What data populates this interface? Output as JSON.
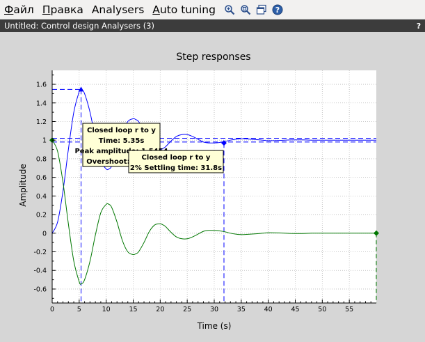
{
  "menu": [
    {
      "u": "Ф",
      "rest": "айл"
    },
    {
      "u": "П",
      "rest": "равка"
    },
    {
      "u": "",
      "rest": "Analysers"
    },
    {
      "u": "A",
      "rest": "uto tuning"
    }
  ],
  "toolbar_icons": [
    "zoom-in-icon",
    "zoom-fit-icon",
    "window-icon",
    "help-icon"
  ],
  "window": {
    "title": "Untitled: Control design Analysers (3)",
    "help": "?"
  },
  "chart_data": {
    "type": "line",
    "title": "Step responses",
    "xlabel": "Time (s)",
    "ylabel": "Amplitude",
    "xlim": [
      0,
      60
    ],
    "ylim": [
      -0.75,
      1.75
    ],
    "xticks": [
      0,
      5,
      10,
      15,
      20,
      25,
      30,
      35,
      40,
      45,
      50,
      55
    ],
    "yticks": [
      -0.6,
      -0.4,
      -0.2,
      0,
      0.2,
      0.4,
      0.6,
      0.8,
      1,
      1.2,
      1.4,
      1.6
    ],
    "ytick_labels": [
      "-0.6",
      "-0.4",
      "-0.2",
      "0",
      "0.2",
      "0.4",
      "0.6",
      "0.8",
      "1",
      "1.2",
      "1.4",
      "1.6"
    ],
    "grid": true,
    "series": [
      {
        "color": "#0000ff",
        "x": [
          0,
          1,
          2,
          3,
          4,
          5,
          5.35,
          6,
          7,
          8,
          9,
          10,
          10.5,
          11,
          12,
          13,
          14,
          15,
          15.5,
          16,
          17,
          18,
          19,
          20,
          20.5,
          21,
          22,
          23,
          24,
          25,
          26,
          27,
          28,
          29,
          30,
          31,
          32,
          33,
          34,
          35,
          36,
          38,
          40,
          42,
          44,
          46,
          48,
          50,
          52,
          54,
          56,
          58,
          60
        ],
        "y": [
          0,
          0.12,
          0.45,
          0.9,
          1.3,
          1.52,
          1.545,
          1.5,
          1.3,
          1.02,
          0.78,
          0.69,
          0.69,
          0.72,
          0.88,
          1.08,
          1.2,
          1.23,
          1.22,
          1.2,
          1.1,
          0.98,
          0.91,
          0.9,
          0.91,
          0.93,
          0.99,
          1.04,
          1.06,
          1.06,
          1.04,
          1.01,
          0.98,
          0.97,
          0.97,
          0.975,
          0.985,
          1.0,
          1.01,
          1.015,
          1.013,
          1.005,
          0.995,
          0.997,
          1.002,
          1.003,
          1.0,
          0.999,
          1.0,
          1.0,
          1.0,
          1.0,
          1.0
        ]
      },
      {
        "color": "#007700",
        "x": [
          0,
          1,
          2,
          3,
          4,
          5,
          5.35,
          6,
          7,
          8,
          9,
          10,
          10.5,
          11,
          12,
          13,
          14,
          15,
          15.5,
          16,
          17,
          18,
          19,
          20,
          20.5,
          21,
          22,
          23,
          24,
          25,
          26,
          27,
          28,
          29,
          30,
          31,
          32,
          33,
          34,
          35,
          36,
          38,
          40,
          42,
          44,
          46,
          48,
          50,
          52,
          54,
          56,
          58,
          60
        ],
        "y": [
          1,
          0.88,
          0.55,
          0.1,
          -0.3,
          -0.52,
          -0.545,
          -0.5,
          -0.3,
          -0.02,
          0.22,
          0.31,
          0.31,
          0.28,
          0.12,
          -0.08,
          -0.2,
          -0.23,
          -0.22,
          -0.2,
          -0.1,
          0.02,
          0.09,
          0.1,
          0.09,
          0.07,
          0.01,
          -0.04,
          -0.06,
          -0.06,
          -0.04,
          -0.01,
          0.02,
          0.03,
          0.03,
          0.025,
          0.015,
          0.0,
          -0.01,
          -0.015,
          -0.013,
          -0.005,
          0.005,
          0.003,
          -0.002,
          -0.003,
          0.0,
          0.001,
          0.0,
          0.0,
          0.0,
          0.0,
          0.0
        ]
      }
    ],
    "markers": [
      {
        "x": 5.35,
        "y": 1.545,
        "color": "#0000ff",
        "shape": "triangle"
      },
      {
        "x": 31.8,
        "y": 0.97,
        "color": "#0000ff",
        "shape": "diamond"
      },
      {
        "x": 0,
        "y": 1,
        "color": "#007700",
        "shape": "diamond"
      },
      {
        "x": 60,
        "y": 0,
        "color": "#007700",
        "shape": "diamond"
      }
    ],
    "settling_band": [
      0.98,
      1.02
    ],
    "annotations": [
      {
        "lines": [
          "Closed loop r to y",
          "Time: 5.35s",
          "Peak amplitude: 1.5454",
          "Overshoot: 54.5%"
        ]
      },
      {
        "lines": [
          "Closed loop r to y",
          "2% Settling time: 31.8s"
        ]
      }
    ]
  }
}
